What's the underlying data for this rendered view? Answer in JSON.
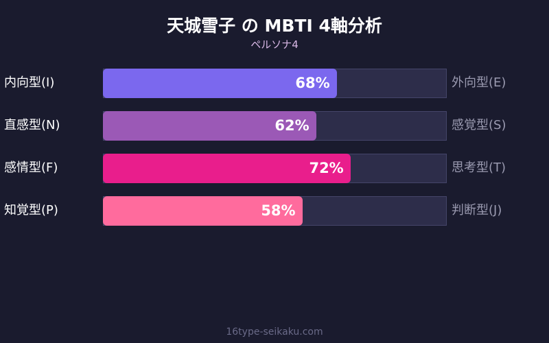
{
  "chart_data": {
    "type": "bar",
    "orientation": "horizontal",
    "title": "天城雪子 の MBTI 4軸分析",
    "subtitle": "ペルソナ4",
    "xlim": [
      0,
      100
    ],
    "rows": [
      {
        "left": "内向型(I)",
        "right": "外向型(E)",
        "value": 68,
        "label": "68%",
        "color": "#7b68ee"
      },
      {
        "left": "直感型(N)",
        "right": "感覚型(S)",
        "value": 62,
        "label": "62%",
        "color": "#9b59b6"
      },
      {
        "left": "感情型(F)",
        "right": "思考型(T)",
        "value": 72,
        "label": "72%",
        "color": "#e91e8c"
      },
      {
        "left": "知覚型(P)",
        "right": "判断型(J)",
        "value": 58,
        "label": "58%",
        "color": "#ff6b9d"
      }
    ],
    "track_color": "#2d2d4a"
  },
  "footer": "16type-seikaku.com"
}
